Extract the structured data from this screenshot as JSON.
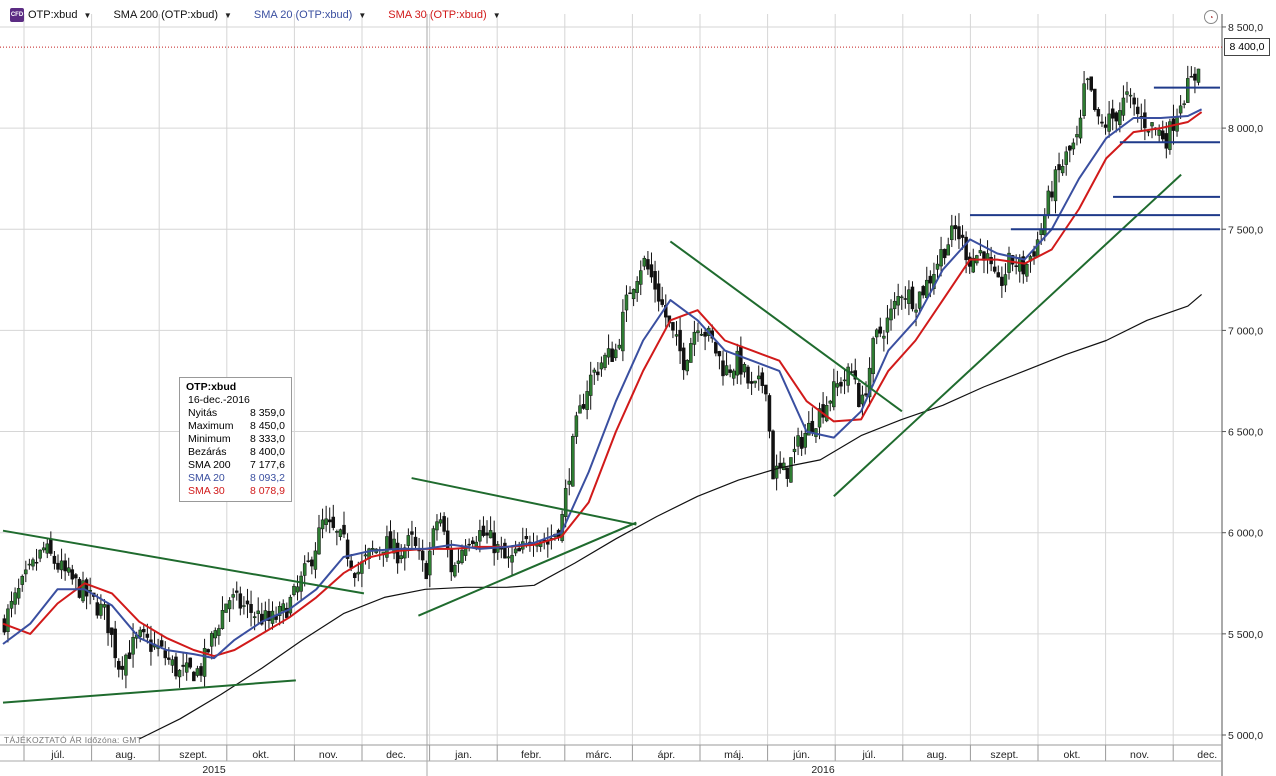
{
  "toolbar": {
    "logo_text": "CFD",
    "symbol": "OTP:xbud",
    "sma200_label": "SMA 200 (OTP:xbud)",
    "sma20_label": "SMA 20 (OTP:xbud)",
    "sma30_label": "SMA 30 (OTP:xbud)",
    "dropdown_glyph": "▼",
    "clock_glyph": "◔",
    "icons": [
      "chevron-down-icon",
      "clock-icon"
    ]
  },
  "info_label": "TÁJÉKOZTATÓ ÁR   Időzóna: GMT",
  "price_badge": "8 400,0",
  "legend": {
    "title": "OTP:xbud",
    "date": "16-dec.-2016",
    "rows": [
      {
        "label": "Nyitás",
        "value": "8 359,0"
      },
      {
        "label": "Maximum",
        "value": "8 450,0"
      },
      {
        "label": "Minimum",
        "value": "8 333,0"
      },
      {
        "label": "Bezárás",
        "value": "8 400,0"
      },
      {
        "label": "SMA 200",
        "value": "7 177,6"
      },
      {
        "label": "SMA 20",
        "value": "8 093,2"
      },
      {
        "label": "SMA 30",
        "value": "8 078,9"
      }
    ]
  },
  "colors": {
    "candle": "#111111",
    "candle_up_fill": "#2e7d32",
    "sma200": "#111111",
    "sma20": "#3a4fa0",
    "sma30": "#d11a1a",
    "trendline_green": "#1f6b2e",
    "hline_blue": "#1f3a8a",
    "grid": "#d6d6d6",
    "last_price_line": "#c21d1d"
  },
  "chart_data": {
    "type": "candlestick",
    "ylim": [
      5000,
      8500
    ],
    "y_ticks": [
      5000,
      5500,
      6000,
      6500,
      7000,
      7500,
      8000,
      8500
    ],
    "y_tick_labels": [
      "5 000,0",
      "5 500,0",
      "6 000,0",
      "6 500,0",
      "7 000,0",
      "7 500,0",
      "8 000,0",
      "8 500,0"
    ],
    "months": [
      "júl.",
      "aug.",
      "szept.",
      "okt.",
      "nov.",
      "dec.",
      "jan.",
      "febr.",
      "márc.",
      "ápr.",
      "máj.",
      "jún.",
      "júl.",
      "aug.",
      "szept.",
      "okt.",
      "nov.",
      "dec."
    ],
    "years": [
      "2015",
      "2016"
    ],
    "x_range_months": [
      0,
      17.9
    ],
    "last_close": 8400,
    "close_path": [
      [
        0.0,
        5550
      ],
      [
        0.3,
        5750
      ],
      [
        0.6,
        5920
      ],
      [
        0.9,
        5800
      ],
      [
        1.2,
        5700
      ],
      [
        1.5,
        5600
      ],
      [
        1.7,
        5350
      ],
      [
        2.0,
        5480
      ],
      [
        2.3,
        5420
      ],
      [
        2.6,
        5300
      ],
      [
        2.9,
        5320
      ],
      [
        3.1,
        5500
      ],
      [
        3.3,
        5680
      ],
      [
        3.6,
        5620
      ],
      [
        3.9,
        5560
      ],
      [
        4.1,
        5600
      ],
      [
        4.3,
        5700
      ],
      [
        4.5,
        5850
      ],
      [
        4.7,
        6050
      ],
      [
        5.0,
        5950
      ],
      [
        5.2,
        5800
      ],
      [
        5.4,
        5900
      ],
      [
        5.6,
        5950
      ],
      [
        5.8,
        5900
      ],
      [
        6.0,
        5960
      ],
      [
        6.2,
        5800
      ],
      [
        6.4,
        6100
      ],
      [
        6.6,
        5800
      ],
      [
        6.8,
        5980
      ],
      [
        7.0,
        6000
      ],
      [
        7.2,
        5950
      ],
      [
        7.4,
        5850
      ],
      [
        7.6,
        5900
      ],
      [
        7.8,
        6000
      ],
      [
        8.0,
        5950
      ],
      [
        8.2,
        6050
      ],
      [
        8.4,
        6500
      ],
      [
        8.6,
        6750
      ],
      [
        8.8,
        6850
      ],
      [
        9.0,
        6900
      ],
      [
        9.2,
        7200
      ],
      [
        9.4,
        7350
      ],
      [
        9.6,
        7200
      ],
      [
        9.8,
        7000
      ],
      [
        10.0,
        6850
      ],
      [
        10.2,
        7050
      ],
      [
        10.4,
        6950
      ],
      [
        10.6,
        6800
      ],
      [
        10.8,
        6850
      ],
      [
        11.0,
        6700
      ],
      [
        11.2,
        6750
      ],
      [
        11.3,
        6300
      ],
      [
        11.5,
        6300
      ],
      [
        11.7,
        6450
      ],
      [
        11.9,
        6550
      ],
      [
        12.1,
        6650
      ],
      [
        12.3,
        6750
      ],
      [
        12.5,
        6800
      ],
      [
        12.6,
        6600
      ],
      [
        12.8,
        6950
      ],
      [
        13.0,
        7050
      ],
      [
        13.2,
        7200
      ],
      [
        13.4,
        7150
      ],
      [
        13.6,
        7250
      ],
      [
        13.8,
        7400
      ],
      [
        14.0,
        7500
      ],
      [
        14.2,
        7350
      ],
      [
        14.4,
        7400
      ],
      [
        14.6,
        7200
      ],
      [
        14.8,
        7350
      ],
      [
        15.0,
        7300
      ],
      [
        15.2,
        7450
      ],
      [
        15.4,
        7700
      ],
      [
        15.6,
        7850
      ],
      [
        15.8,
        7950
      ],
      [
        15.9,
        8250
      ],
      [
        16.1,
        8000
      ],
      [
        16.3,
        8050
      ],
      [
        16.5,
        8150
      ],
      [
        16.7,
        8050
      ],
      [
        16.9,
        8000
      ],
      [
        17.1,
        7950
      ],
      [
        17.3,
        8150
      ],
      [
        17.5,
        8250
      ],
      [
        17.6,
        8400
      ]
    ],
    "sma20_path": [
      [
        0.0,
        5450
      ],
      [
        0.4,
        5550
      ],
      [
        0.8,
        5720
      ],
      [
        1.2,
        5720
      ],
      [
        1.6,
        5640
      ],
      [
        2.0,
        5480
      ],
      [
        2.4,
        5420
      ],
      [
        2.8,
        5400
      ],
      [
        3.1,
        5380
      ],
      [
        3.4,
        5470
      ],
      [
        3.8,
        5560
      ],
      [
        4.2,
        5620
      ],
      [
        4.6,
        5720
      ],
      [
        5.0,
        5880
      ],
      [
        5.4,
        5910
      ],
      [
        5.8,
        5920
      ],
      [
        6.2,
        5920
      ],
      [
        6.6,
        5940
      ],
      [
        7.0,
        5920
      ],
      [
        7.4,
        5930
      ],
      [
        7.8,
        5950
      ],
      [
        8.2,
        6000
      ],
      [
        8.6,
        6300
      ],
      [
        9.0,
        6650
      ],
      [
        9.4,
        6950
      ],
      [
        9.8,
        7150
      ],
      [
        10.2,
        7050
      ],
      [
        10.6,
        6900
      ],
      [
        11.0,
        6850
      ],
      [
        11.4,
        6800
      ],
      [
        11.8,
        6500
      ],
      [
        12.2,
        6470
      ],
      [
        12.6,
        6600
      ],
      [
        13.0,
        6900
      ],
      [
        13.4,
        7050
      ],
      [
        13.8,
        7300
      ],
      [
        14.2,
        7450
      ],
      [
        14.6,
        7380
      ],
      [
        15.0,
        7350
      ],
      [
        15.4,
        7500
      ],
      [
        15.8,
        7750
      ],
      [
        16.2,
        7950
      ],
      [
        16.6,
        8050
      ],
      [
        17.0,
        8050
      ],
      [
        17.4,
        8060
      ],
      [
        17.6,
        8093
      ]
    ],
    "sma30_path": [
      [
        0.0,
        5550
      ],
      [
        0.4,
        5500
      ],
      [
        0.8,
        5650
      ],
      [
        1.2,
        5750
      ],
      [
        1.6,
        5700
      ],
      [
        2.0,
        5560
      ],
      [
        2.4,
        5480
      ],
      [
        2.8,
        5420
      ],
      [
        3.1,
        5390
      ],
      [
        3.4,
        5420
      ],
      [
        3.8,
        5500
      ],
      [
        4.2,
        5580
      ],
      [
        4.6,
        5680
      ],
      [
        5.0,
        5800
      ],
      [
        5.4,
        5880
      ],
      [
        5.8,
        5910
      ],
      [
        6.2,
        5920
      ],
      [
        6.6,
        5920
      ],
      [
        7.0,
        5930
      ],
      [
        7.4,
        5930
      ],
      [
        7.8,
        5940
      ],
      [
        8.2,
        5980
      ],
      [
        8.6,
        6150
      ],
      [
        9.0,
        6500
      ],
      [
        9.4,
        6800
      ],
      [
        9.8,
        7050
      ],
      [
        10.2,
        7100
      ],
      [
        10.6,
        6950
      ],
      [
        11.0,
        6900
      ],
      [
        11.4,
        6850
      ],
      [
        11.8,
        6650
      ],
      [
        12.2,
        6550
      ],
      [
        12.6,
        6560
      ],
      [
        13.0,
        6800
      ],
      [
        13.4,
        6950
      ],
      [
        13.8,
        7150
      ],
      [
        14.2,
        7350
      ],
      [
        14.6,
        7350
      ],
      [
        15.0,
        7330
      ],
      [
        15.4,
        7400
      ],
      [
        15.8,
        7600
      ],
      [
        16.2,
        7850
      ],
      [
        16.6,
        7980
      ],
      [
        17.0,
        8000
      ],
      [
        17.4,
        8030
      ],
      [
        17.6,
        8079
      ]
    ],
    "sma200_path": [
      [
        2.0,
        4980
      ],
      [
        2.6,
        5080
      ],
      [
        3.2,
        5200
      ],
      [
        3.8,
        5330
      ],
      [
        4.4,
        5470
      ],
      [
        5.0,
        5600
      ],
      [
        5.6,
        5680
      ],
      [
        6.2,
        5720
      ],
      [
        6.8,
        5730
      ],
      [
        7.4,
        5730
      ],
      [
        7.8,
        5740
      ],
      [
        8.4,
        5850
      ],
      [
        9.0,
        5970
      ],
      [
        9.6,
        6080
      ],
      [
        10.2,
        6180
      ],
      [
        10.8,
        6260
      ],
      [
        11.4,
        6320
      ],
      [
        12.0,
        6360
      ],
      [
        12.6,
        6480
      ],
      [
        13.2,
        6560
      ],
      [
        13.8,
        6630
      ],
      [
        14.4,
        6720
      ],
      [
        15.0,
        6800
      ],
      [
        15.6,
        6880
      ],
      [
        16.2,
        6950
      ],
      [
        16.8,
        7050
      ],
      [
        17.4,
        7120
      ],
      [
        17.6,
        7178
      ]
    ],
    "trendlines": [
      {
        "color": "green",
        "from": [
          0.0,
          6010
        ],
        "to": [
          5.3,
          5700
        ]
      },
      {
        "color": "green",
        "from": [
          0.0,
          5160
        ],
        "to": [
          4.3,
          5270
        ]
      },
      {
        "color": "green",
        "from": [
          6.0,
          6270
        ],
        "to": [
          9.3,
          6040
        ]
      },
      {
        "color": "green",
        "from": [
          6.1,
          5590
        ],
        "to": [
          9.3,
          6050
        ]
      },
      {
        "color": "green",
        "from": [
          9.8,
          7440
        ],
        "to": [
          13.2,
          6600
        ]
      },
      {
        "color": "green",
        "from": [
          12.2,
          6180
        ],
        "to": [
          17.3,
          7770
        ]
      }
    ],
    "hlines": [
      {
        "value": 8200,
        "from": 16.9,
        "to": 17.9
      },
      {
        "value": 7930,
        "from": 16.4,
        "to": 17.9
      },
      {
        "value": 7660,
        "from": 16.3,
        "to": 17.9
      },
      {
        "value": 7570,
        "from": 14.2,
        "to": 17.9
      },
      {
        "value": 7500,
        "from": 14.8,
        "to": 17.9
      }
    ]
  }
}
